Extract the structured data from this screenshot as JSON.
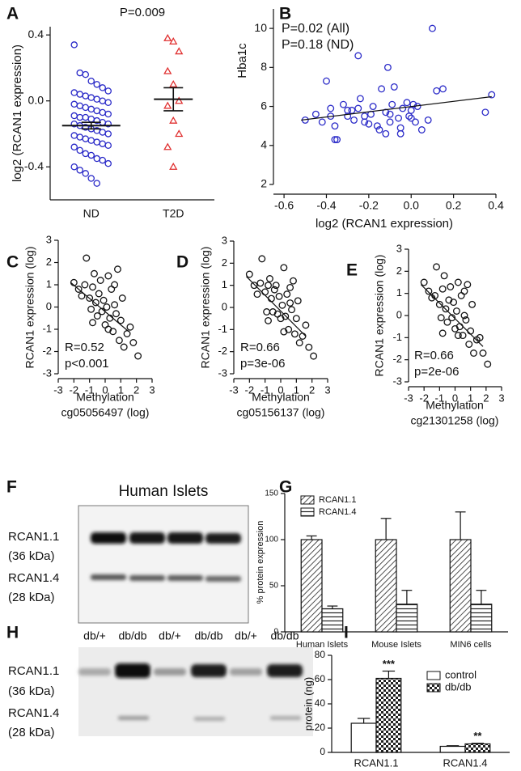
{
  "chart_data": [
    {
      "type": "dot",
      "label": "A",
      "title": "P=0.009",
      "ylabel": "log2 (RCAN1 expression)",
      "categories": [
        "ND",
        "T2D"
      ],
      "groups": [
        {
          "color": "#2a2ac8",
          "marker": "circle",
          "mean": -0.15,
          "sem": 0.02,
          "values": [
            0.34,
            0.17,
            0.16,
            0.12,
            0.1,
            0.08,
            0.06,
            0.05,
            0.04,
            0.03,
            0.02,
            0.01,
            0.0,
            -0.01,
            -0.02,
            -0.03,
            -0.04,
            -0.05,
            -0.06,
            -0.07,
            -0.08,
            -0.09,
            -0.1,
            -0.1,
            -0.11,
            -0.12,
            -0.13,
            -0.14,
            -0.14,
            -0.15,
            -0.16,
            -0.17,
            -0.18,
            -0.19,
            -0.2,
            -0.21,
            -0.22,
            -0.23,
            -0.24,
            -0.25,
            -0.26,
            -0.27,
            -0.28,
            -0.3,
            -0.32,
            -0.33,
            -0.35,
            -0.36,
            -0.38,
            -0.4,
            -0.42,
            -0.44,
            -0.47,
            -0.5
          ]
        },
        {
          "color": "#e03030",
          "marker": "triangle",
          "mean": 0.01,
          "sem": 0.07,
          "values": [
            0.38,
            0.36,
            0.3,
            0.18,
            0.1,
            0.0,
            -0.03,
            -0.12,
            -0.2,
            -0.28,
            -0.4
          ]
        }
      ],
      "ylim": [
        -0.6,
        0.45
      ],
      "yticks": [
        -0.4,
        {
          "value": 0,
          "label": "0.0"
        },
        0.4
      ]
    },
    {
      "type": "scatter",
      "label": "B",
      "annotations": [
        "P=0.02 (All)",
        "P=0.18 (ND)"
      ],
      "ylabel": "Hba1c",
      "xlabel": [
        "log2 (RCAN1 expression)"
      ],
      "color": "#2a2ac8",
      "x": [
        -0.5,
        -0.45,
        -0.42,
        -0.4,
        -0.38,
        -0.36,
        -0.35,
        -0.32,
        -0.3,
        -0.28,
        -0.27,
        -0.25,
        -0.24,
        -0.22,
        -0.2,
        -0.19,
        -0.18,
        -0.16,
        -0.15,
        -0.14,
        -0.12,
        -0.11,
        -0.1,
        -0.09,
        -0.08,
        -0.06,
        -0.05,
        -0.04,
        -0.02,
        -0.01,
        0.0,
        0.01,
        0.02,
        0.03,
        0.05,
        0.08,
        0.1,
        0.12,
        0.15,
        0.35,
        0.38,
        -0.38,
        -0.36,
        -0.22,
        -0.12,
        0.0,
        -0.25,
        -0.1,
        -0.3,
        -0.05
      ],
      "y": [
        5.3,
        5.6,
        5.2,
        7.3,
        5.9,
        4.3,
        4.3,
        6.1,
        5.5,
        5.8,
        5.3,
        8.6,
        6.4,
        5.5,
        5.1,
        5.6,
        6.0,
        5.0,
        4.8,
        6.9,
        5.7,
        8.0,
        5.2,
        6.1,
        7.0,
        5.4,
        4.6,
        5.9,
        6.2,
        5.5,
        5.8,
        6.1,
        5.2,
        6.0,
        4.8,
        5.3,
        10.0,
        6.8,
        6.9,
        5.7,
        6.6,
        5.5,
        5.0,
        5.2,
        4.6,
        5.4,
        5.9,
        5.6,
        5.8,
        4.9
      ],
      "fit": {
        "x": [
          -0.52,
          0.38
        ],
        "y": [
          5.3,
          6.5
        ]
      },
      "xlim": [
        -0.65,
        0.4
      ],
      "xticks": [
        -0.6,
        -0.4,
        -0.2,
        {
          "value": 0,
          "label": "0.0"
        },
        0.2,
        0.4
      ],
      "ylim": [
        2,
        11
      ],
      "yticks": [
        2,
        4,
        6,
        8,
        10
      ]
    },
    {
      "type": "scatter",
      "label": "C",
      "annotations": [
        "R=0.52",
        "p<0.001"
      ],
      "ylabel": "RCAN1 expression (log)",
      "xlabel": [
        "Methylation",
        "cg05056497 (log)"
      ],
      "color": "#111111",
      "x": [
        -2.0,
        -1.7,
        -1.5,
        -1.3,
        -1.2,
        -1.0,
        -0.9,
        -0.8,
        -0.7,
        -0.6,
        -0.5,
        -0.4,
        -0.3,
        -0.2,
        -0.1,
        0.0,
        0.1,
        0.2,
        0.3,
        0.4,
        0.5,
        0.6,
        0.7,
        0.8,
        0.9,
        1.0,
        1.1,
        1.2,
        1.4,
        1.6,
        1.8,
        2.1,
        -0.8,
        0.2,
        0.6
      ],
      "y": [
        1.1,
        0.8,
        0.5,
        1.0,
        2.2,
        0.4,
        -0.1,
        0.9,
        1.5,
        0.2,
        -0.4,
        0.6,
        1.2,
        -0.2,
        0.3,
        -0.8,
        0.0,
        1.4,
        -0.5,
        0.8,
        -1.1,
        0.1,
        -0.3,
        1.7,
        -1.5,
        -0.6,
        0.4,
        -1.8,
        -1.2,
        -0.9,
        -1.6,
        -2.2,
        -0.7,
        -1.0,
        1.0
      ],
      "fit": {
        "x": [
          -2.2,
          1.5
        ],
        "y": [
          1.1,
          -1.1
        ]
      },
      "xlim": [
        -3,
        3
      ],
      "xticks": [
        -3,
        -2,
        -1,
        0,
        1,
        2,
        3
      ],
      "ylim": [
        -3,
        3
      ],
      "yticks": [
        -3,
        -2,
        -1,
        0,
        1,
        2,
        3
      ]
    },
    {
      "type": "scatter",
      "label": "D",
      "annotations": [
        "R=0.66",
        "p=3e-06"
      ],
      "ylabel": "RCAN1 expression (log)",
      "xlabel": [
        "Methylation",
        "cg05156137 (log)"
      ],
      "color": "#111111",
      "x": [
        -2.0,
        -1.7,
        -1.5,
        -1.3,
        -1.2,
        -1.0,
        -0.9,
        -0.8,
        -0.7,
        -0.6,
        -0.5,
        -0.4,
        -0.3,
        -0.2,
        -0.1,
        0.0,
        0.1,
        0.2,
        0.3,
        0.4,
        0.5,
        0.6,
        0.7,
        0.8,
        0.9,
        1.0,
        1.1,
        1.2,
        1.4,
        1.6,
        1.8,
        2.1,
        -0.8,
        0.2,
        0.6
      ],
      "y": [
        1.5,
        1.0,
        0.6,
        1.1,
        2.2,
        0.7,
        -0.2,
        1.0,
        1.3,
        0.4,
        -0.2,
        0.8,
        1.0,
        -0.3,
        0.5,
        -0.5,
        0.1,
        1.8,
        -0.4,
        0.6,
        -1.0,
        0.2,
        -0.1,
        1.2,
        -1.2,
        -0.5,
        0.3,
        -1.6,
        -1.3,
        -0.8,
        -1.8,
        -2.2,
        -0.6,
        -1.1,
        0.9
      ],
      "fit": {
        "x": [
          -2.2,
          1.6
        ],
        "y": [
          1.4,
          -1.3
        ]
      },
      "xlim": [
        -3,
        3
      ],
      "xticks": [
        -3,
        -2,
        -1,
        0,
        1,
        2,
        3
      ],
      "ylim": [
        -3,
        3
      ],
      "yticks": [
        -3,
        -2,
        -1,
        0,
        1,
        2,
        3
      ]
    },
    {
      "type": "scatter",
      "label": "E",
      "annotations": [
        "R=0.66",
        "p=2e-06"
      ],
      "ylabel": "RCAN1 expression (log)",
      "xlabel": [
        "Methylation",
        "cg21301258 (log)"
      ],
      "color": "#111111",
      "x": [
        -2.0,
        -1.7,
        -1.5,
        -1.3,
        -1.2,
        -1.0,
        -0.9,
        -0.8,
        -0.7,
        -0.6,
        -0.5,
        -0.4,
        -0.3,
        -0.2,
        -0.1,
        0.0,
        0.1,
        0.2,
        0.3,
        0.4,
        0.5,
        0.6,
        0.7,
        0.8,
        0.9,
        1.0,
        1.1,
        1.2,
        1.4,
        1.6,
        1.8,
        2.1,
        -0.8,
        0.2,
        0.6
      ],
      "y": [
        1.5,
        1.1,
        0.8,
        0.9,
        2.2,
        0.5,
        -0.1,
        1.2,
        1.8,
        0.3,
        -0.3,
        0.7,
        1.3,
        -0.1,
        0.6,
        -0.6,
        0.2,
        1.5,
        -0.5,
        0.9,
        -0.9,
        0.0,
        -0.2,
        1.4,
        -1.3,
        -0.7,
        0.5,
        -1.7,
        -1.1,
        -1.0,
        -1.7,
        -2.2,
        -0.8,
        -0.9,
        1.1
      ],
      "fit": {
        "x": [
          -2.2,
          1.8
        ],
        "y": [
          1.4,
          -1.4
        ]
      },
      "xlim": [
        -3,
        3
      ],
      "xticks": [
        -3,
        -2,
        -1,
        0,
        1,
        2,
        3
      ],
      "ylim": [
        -3,
        3
      ],
      "yticks": [
        -3,
        -2,
        -1,
        0,
        1,
        2,
        3
      ]
    },
    {
      "type": "bar",
      "label": "G",
      "ylabel": "% protein expression",
      "legend": "top-left",
      "categories": [
        "Human Islets",
        "Mouse Islets",
        "MIN6 cells"
      ],
      "series": [
        {
          "name": "RCAN1.1",
          "pattern": "diagonal",
          "values": [
            100,
            100,
            100
          ],
          "errors": [
            4,
            23,
            30
          ]
        },
        {
          "name": "RCAN1.4",
          "pattern": "horizontal",
          "values": [
            25,
            30,
            30
          ],
          "errors": [
            3,
            15,
            15
          ]
        }
      ],
      "ylim": [
        0,
        150
      ],
      "yticks": [
        0,
        50,
        100,
        150
      ]
    },
    {
      "type": "bar",
      "label": "I",
      "ylabel": "protein (ng)",
      "legend": "top-right",
      "annotations": [
        "***",
        "**"
      ],
      "categories": [
        "RCAN1.1",
        "RCAN1.4"
      ],
      "series": [
        {
          "name": "control",
          "pattern": "none",
          "values": [
            24,
            5
          ],
          "errors": [
            4,
            0.5
          ]
        },
        {
          "name": "db/db",
          "pattern": "checker",
          "values": [
            61,
            7
          ],
          "errors": [
            6,
            0.5
          ]
        }
      ],
      "ylim": [
        0,
        80
      ],
      "yticks": [
        0,
        20,
        40,
        60,
        80
      ]
    }
  ],
  "blots": [
    {
      "label": "F",
      "title": "Human Islets",
      "bands": [
        {
          "name": "RCAN1.1",
          "size": "(36 kDa)"
        },
        {
          "name": "RCAN1.4",
          "size": "(28 kDa)"
        }
      ]
    },
    {
      "label": "H",
      "lanes": [
        "db/+",
        "db/db",
        "db/+",
        "db/db",
        "db/+",
        "db/db"
      ],
      "bands": [
        {
          "name": "RCAN1.1",
          "size": "(36 kDa)"
        },
        {
          "name": "RCAN1.4",
          "size": "(28 kDa)"
        }
      ]
    }
  ]
}
